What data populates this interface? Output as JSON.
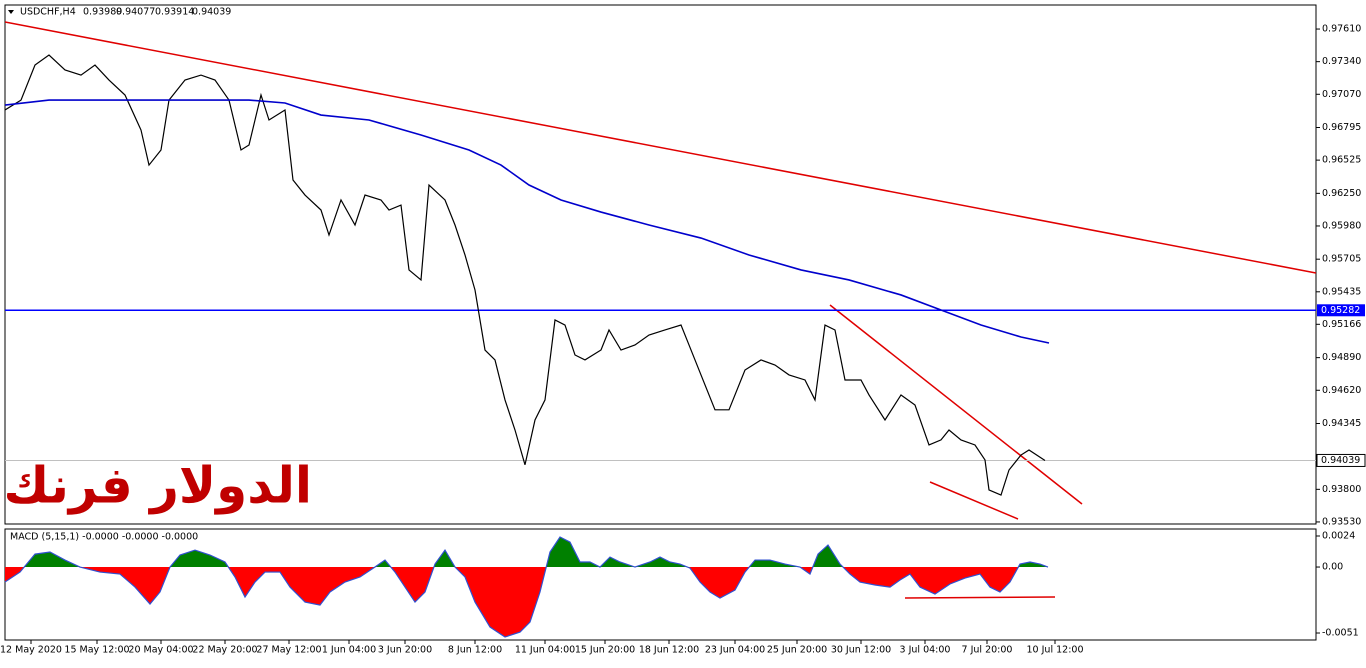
{
  "header": {
    "symbol": "USDCHF,H4",
    "open": 0.93989,
    "high": 0.94077,
    "low": 0.93914,
    "close": 0.94039
  },
  "watermark": "الدولار فرنك",
  "chart_data": [
    {
      "type": "line",
      "xlim": [
        0,
        327.75
      ],
      "ylim": [
        0.93513,
        0.97809
      ],
      "yticks": [
        {
          "value": 0.9761,
          "label": "0.97610"
        },
        {
          "value": 0.9734,
          "label": "0.97340"
        },
        {
          "value": 0.9707,
          "label": "0.97070"
        },
        0.96795,
        0.96525,
        {
          "value": 0.9625,
          "label": "0.96250"
        },
        {
          "value": 0.9598,
          "label": "0.95980"
        },
        0.95705,
        0.95435,
        0.95166,
        {
          "value": 0.9489,
          "label": "0.94890"
        },
        {
          "value": 0.9462,
          "label": "0.94620"
        },
        0.94345,
        {
          "value": 0.938,
          "label": "0.93800"
        },
        {
          "value": 0.9353,
          "label": "0.93530"
        }
      ],
      "xticks": [
        {
          "value": 6.5,
          "label": "12 May 2020"
        },
        {
          "value": 23,
          "label": "15 May 12:00"
        },
        {
          "value": 39,
          "label": "20 May 04:00"
        },
        {
          "value": 55,
          "label": "22 May 20:00"
        },
        {
          "value": 71,
          "label": "27 May 12:00"
        },
        {
          "value": 86,
          "label": "1 Jun 04:00"
        },
        {
          "value": 100,
          "label": "3 Jun 20:00"
        },
        {
          "value": 117.5,
          "label": "8 Jun 12:00"
        },
        {
          "value": 135,
          "label": "11 Jun 04:00"
        },
        {
          "value": 150,
          "label": "15 Jun 20:00"
        },
        {
          "value": 166,
          "label": "18 Jun 12:00"
        },
        {
          "value": 182.5,
          "label": "23 Jun 04:00"
        },
        {
          "value": 198,
          "label": "25 Jun 20:00"
        },
        {
          "value": 214,
          "label": "30 Jun 12:00"
        },
        {
          "value": 230,
          "label": "3 Jul 04:00"
        },
        {
          "value": 245.5,
          "label": "7 Jul 20:00"
        },
        {
          "value": 262.5,
          "label": "10 Jul 12:00"
        }
      ],
      "series": [
        {
          "color": "#000000",
          "x": [
            0,
            4,
            7.5,
            11,
            15,
            19,
            22.5,
            26,
            30,
            34,
            36,
            39,
            41,
            45,
            49,
            52.5,
            56,
            59,
            61,
            64,
            66,
            70,
            72,
            75,
            79,
            81,
            84,
            87.5,
            90,
            94,
            96,
            99,
            101,
            104,
            106,
            110,
            112.5,
            115,
            117.5,
            120,
            122.5,
            125,
            127.5,
            130,
            132.5,
            135,
            137.5,
            140,
            142.5,
            145,
            149,
            151,
            154,
            157.5,
            161,
            165,
            169,
            171,
            174,
            177.5,
            181,
            185,
            189,
            192.5,
            196,
            200,
            202.5,
            205,
            207.5,
            210,
            214,
            216,
            220,
            224,
            227.5,
            231,
            234,
            236,
            239,
            242.5,
            245,
            246,
            249,
            251,
            254,
            256,
            260
          ],
          "values": [
            0.9694,
            0.97022,
            0.97312,
            0.97395,
            0.97271,
            0.97229,
            0.97312,
            0.97188,
            0.97064,
            0.96774,
            0.96484,
            0.96609,
            0.97022,
            0.97188,
            0.97229,
            0.97188,
            0.97022,
            0.96609,
            0.9665,
            0.97064,
            0.96857,
            0.9694,
            0.9636,
            0.96236,
            0.96112,
            0.95905,
            0.96195,
            0.95988,
            0.96236,
            0.96195,
            0.96112,
            0.96153,
            0.95616,
            0.95533,
            0.96319,
            0.96195,
            0.95988,
            0.9574,
            0.9545,
            0.94953,
            0.94871,
            0.9454,
            0.94291,
            0.94003,
            0.94374,
            0.9454,
            0.95202,
            0.9516,
            0.94912,
            0.94871,
            0.94953,
            0.95119,
            0.94953,
            0.94995,
            0.95077,
            0.95119,
            0.9516,
            0.94995,
            0.94747,
            0.94458,
            0.94458,
            0.94788,
            0.94871,
            0.94829,
            0.94747,
            0.94705,
            0.9454,
            0.9516,
            0.95119,
            0.94705,
            0.94705,
            0.94581,
            0.94374,
            0.94581,
            0.94498,
            0.94167,
            0.94209,
            0.94291,
            0.94209,
            0.94167,
            0.94043,
            0.93795,
            0.93753,
            0.9396,
            0.94084,
            0.94126,
            0.94039
          ]
        },
        {
          "color": "#0000cc",
          "x": [
            0,
            11,
            24,
            36,
            49,
            61,
            70,
            79,
            91,
            104,
            116,
            124,
            131,
            139,
            149,
            161,
            174,
            186,
            199,
            211,
            224,
            234,
            244,
            254,
            261
          ],
          "values": [
            0.96981,
            0.97022,
            0.97022,
            0.97022,
            0.97022,
            0.97022,
            0.96998,
            0.96898,
            0.96857,
            0.96733,
            0.96609,
            0.96484,
            0.96319,
            0.96195,
            0.96095,
            0.95988,
            0.9588,
            0.9574,
            0.95616,
            0.95533,
            0.95409,
            0.95284,
            0.9516,
            0.95061,
            0.95011
          ]
        }
      ],
      "hline": {
        "value": 0.95282,
        "color": "#0000ff"
      },
      "last_price": 0.94039
    },
    {
      "type": "area",
      "title": "MACD (5,15,1) -0.0000 -0.0000 -0.0000",
      "xlim": [
        0,
        327.75
      ],
      "ylim": [
        -0.00564,
        0.00294
      ],
      "yticks": [
        0.0024,
        {
          "value": 0,
          "label": "0.00"
        },
        -0.0051
      ],
      "color": "#3050d0",
      "positive_color": "#008000",
      "negative_color": "#ff0000",
      "x": [
        0,
        3.75,
        7.5,
        11.25,
        15,
        18.75,
        23.75,
        28.75,
        32.5,
        36.25,
        38.75,
        41.25,
        43.75,
        47.5,
        51.25,
        55,
        57.5,
        60,
        62.5,
        65,
        68.75,
        71.25,
        75,
        78.75,
        81.25,
        85,
        88.75,
        92.5,
        95,
        97.5,
        100,
        102.5,
        105,
        107.5,
        110,
        112.5,
        115,
        117.5,
        121.25,
        125,
        128.75,
        131.25,
        133.75,
        136.25,
        138.75,
        141.25,
        143.75,
        146.25,
        148.75,
        151.25,
        153.75,
        157.5,
        161.25,
        163.75,
        166.25,
        168.75,
        171.25,
        173.75,
        176.25,
        178.75,
        182.5,
        185,
        187.5,
        191.25,
        195,
        198.75,
        201.25,
        203.25,
        205.75,
        208.75,
        211.25,
        213.75,
        217.5,
        221.25,
        223.75,
        226.25,
        228.75,
        232.5,
        236.25,
        240,
        243.75,
        246.25,
        248.75,
        251.25,
        253.75,
        256.25,
        258.75,
        260.75
      ],
      "values": [
        -0.00116,
        -0.00039,
        0.001,
        0.00116,
        0.00054,
        0,
        -0.00039,
        -0.00054,
        -0.00155,
        -0.00286,
        -0.00193,
        0,
        0.00093,
        0.00131,
        0.00093,
        0.00039,
        -0.00077,
        -0.00232,
        -0.00116,
        -0.00039,
        -0.00039,
        -0.00155,
        -0.00271,
        -0.00294,
        -0.00193,
        -0.00116,
        -0.00077,
        0,
        0.00054,
        -0.00039,
        -0.00155,
        -0.00271,
        -0.00193,
        0.00023,
        0.00131,
        0,
        -0.00077,
        -0.00271,
        -0.00464,
        -0.00541,
        -0.00503,
        -0.00425,
        -0.00193,
        0.00116,
        0.00232,
        0.00193,
        0.00039,
        0.00039,
        0,
        0.00077,
        0.00039,
        0,
        0.00039,
        0.00077,
        0.00039,
        0.00023,
        -8e-05,
        -0.00116,
        -0.00193,
        -0.0024,
        -0.00178,
        -0.00039,
        0.00054,
        0.00054,
        0.00023,
        0,
        -0.00054,
        0.001,
        0.0017,
        0.00023,
        -0.00054,
        -0.00116,
        -0.00139,
        -0.00155,
        -0.001,
        -0.00054,
        -0.00155,
        -0.00209,
        -0.00131,
        -0.00085,
        -0.00054,
        -0.00155,
        -0.00193,
        -0.00116,
        0.00023,
        0.00039,
        0.00023,
        0
      ]
    }
  ]
}
